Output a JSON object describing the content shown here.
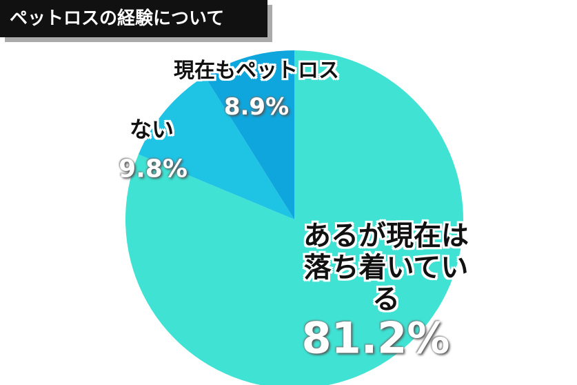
{
  "chart_data": {
    "type": "pie",
    "title": "ペットロスの経験について",
    "categories": [
      "あるが現在は\n落ち着いている",
      "ない",
      "現在もペットロス"
    ],
    "values": [
      81.2,
      9.8,
      8.9
    ],
    "value_labels": [
      "81.2%",
      "9.8%",
      "8.9%"
    ],
    "colors": [
      "#3fe2d3",
      "#1fc3e3",
      "#0ea6dc"
    ]
  }
}
